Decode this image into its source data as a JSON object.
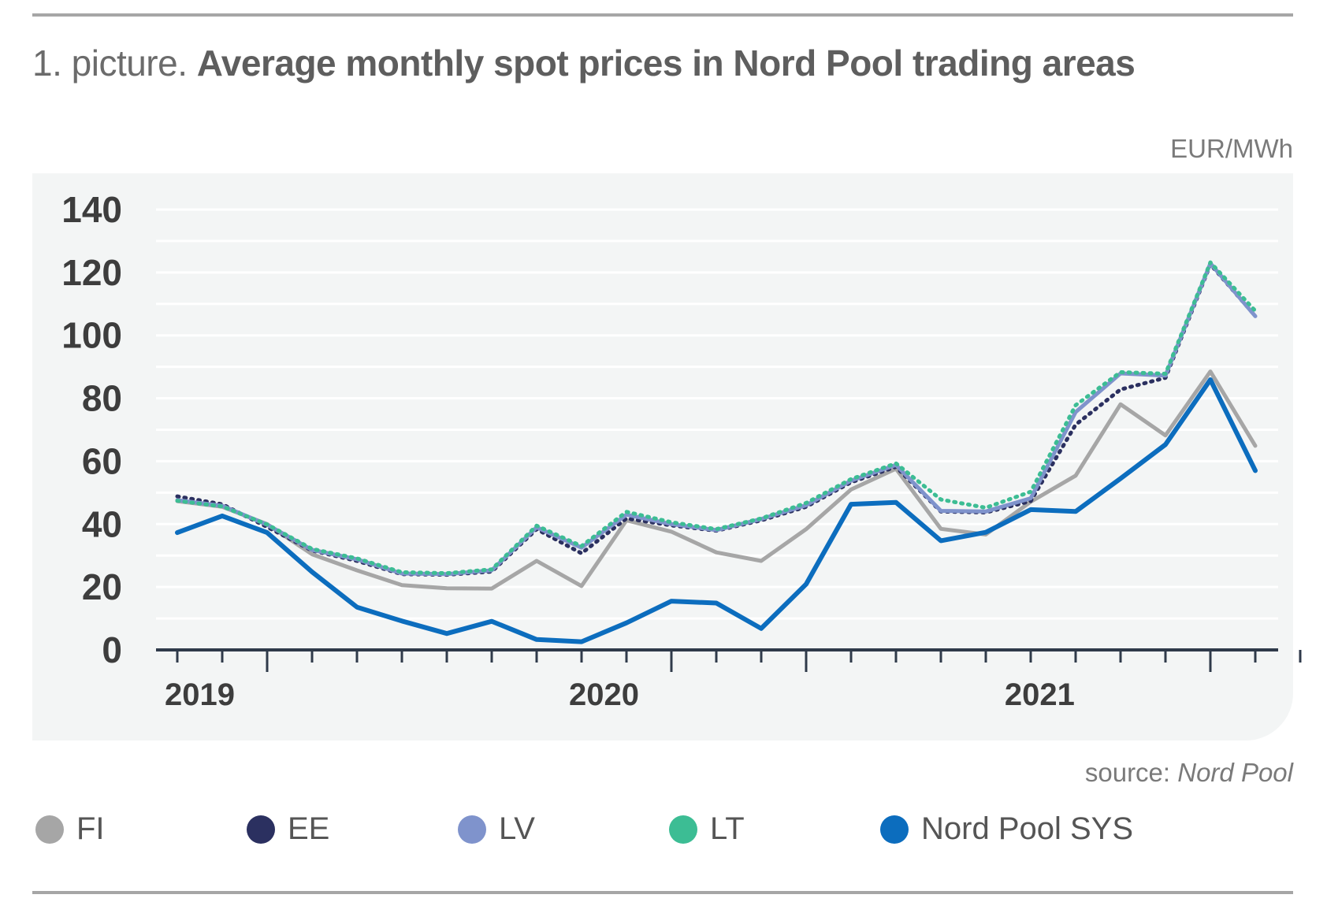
{
  "title": {
    "prefix": "1. picture.",
    "main": "Average monthly spot prices in Nord Pool trading areas"
  },
  "unit": "EUR/MWh",
  "source": {
    "label": "source:",
    "name": "Nord Pool"
  },
  "colors": {
    "FI": "#a6a6a6",
    "EE": "#2b3060",
    "LV": "#7f93cc",
    "LT": "#3cbd94",
    "SYS": "#0c6dbe",
    "grid": "#ffffff",
    "axis": "#2f3a4a",
    "panel": "#f3f5f5"
  },
  "chart_data": {
    "type": "line",
    "x_unit": "month",
    "x": [
      "2019-01",
      "2019-02",
      "2019-03",
      "2019-04",
      "2019-05",
      "2019-06",
      "2019-07",
      "2019-08",
      "2019-09",
      "2019-10",
      "2019-11",
      "2019-12",
      "2020-01",
      "2020-02",
      "2020-03",
      "2020-04",
      "2020-05",
      "2020-06",
      "2020-07",
      "2020-08",
      "2020-09",
      "2020-10",
      "2020-11",
      "2020-12",
      "2021-01",
      "2021-02",
      "2021-03",
      "2021-04",
      "2021-05",
      "2021-06"
    ],
    "x_tick_labels": [
      {
        "label": "2019",
        "month_index": 0.5
      },
      {
        "label": "2020",
        "month_index": 9.5
      },
      {
        "label": "2021",
        "month_index": 19.2
      }
    ],
    "ylim": [
      0,
      140
    ],
    "yticks": [
      0,
      20,
      40,
      60,
      80,
      100,
      120,
      140
    ],
    "series": [
      {
        "key": "FI",
        "name": "FI",
        "style": "solid",
        "values": [
          47.3,
          45.5,
          40.0,
          30.4,
          25.3,
          20.6,
          19.6,
          19.5,
          28.3,
          20.3,
          41.2,
          37.6,
          31.0,
          28.3,
          38.4,
          51.0,
          57.6,
          38.5,
          36.7,
          47.1,
          55.4,
          78.1,
          68.2,
          88.5,
          64.9,
          null,
          null,
          null,
          null,
          null
        ]
      },
      {
        "key": "EE",
        "name": "EE",
        "style": "dotted",
        "values": [
          48.8,
          46.3,
          39.1,
          31.6,
          28.3,
          24.1,
          23.9,
          24.9,
          38.4,
          30.7,
          41.8,
          39.6,
          37.9,
          41.2,
          45.5,
          53.3,
          58.2,
          44.0,
          43.7,
          47.3,
          71.6,
          82.8,
          86.5,
          122.6,
          106.2,
          null,
          null,
          null,
          null,
          null
        ]
      },
      {
        "key": "LV",
        "name": "LV",
        "style": "solid",
        "values": [
          47.6,
          45.8,
          39.8,
          31.8,
          28.8,
          24.3,
          24.1,
          25.3,
          39.0,
          32.5,
          43.0,
          40.0,
          38.1,
          41.6,
          46.0,
          53.8,
          58.8,
          44.2,
          44.0,
          48.2,
          75.6,
          87.9,
          87.2,
          122.9,
          106.1,
          null,
          null,
          null,
          null,
          null
        ]
      },
      {
        "key": "LT",
        "name": "LT",
        "style": "dotted",
        "values": [
          47.4,
          45.6,
          39.9,
          32.1,
          29.1,
          24.7,
          24.4,
          25.6,
          39.5,
          33.0,
          43.9,
          40.6,
          38.4,
          41.8,
          46.7,
          54.3,
          59.3,
          47.8,
          45.2,
          50.3,
          77.8,
          88.3,
          87.8,
          123.2,
          107.8,
          null,
          null,
          null,
          null,
          null
        ]
      },
      {
        "key": "SYS",
        "name": "Nord Pool SYS",
        "style": "solid",
        "values": [
          37.3,
          42.6,
          37.3,
          24.8,
          13.6,
          9.2,
          5.2,
          9.1,
          3.3,
          2.6,
          8.6,
          15.5,
          14.9,
          6.8,
          20.9,
          46.3,
          46.9,
          34.7,
          37.4,
          44.6,
          44.0,
          54.5,
          65.3,
          85.9,
          57.0,
          null,
          null,
          null,
          null,
          null
        ]
      }
    ]
  },
  "legend": [
    {
      "key": "FI",
      "label": "FI"
    },
    {
      "key": "EE",
      "label": "EE"
    },
    {
      "key": "LV",
      "label": "LV"
    },
    {
      "key": "LT",
      "label": "LT"
    },
    {
      "key": "SYS",
      "label": "Nord Pool SYS"
    }
  ]
}
